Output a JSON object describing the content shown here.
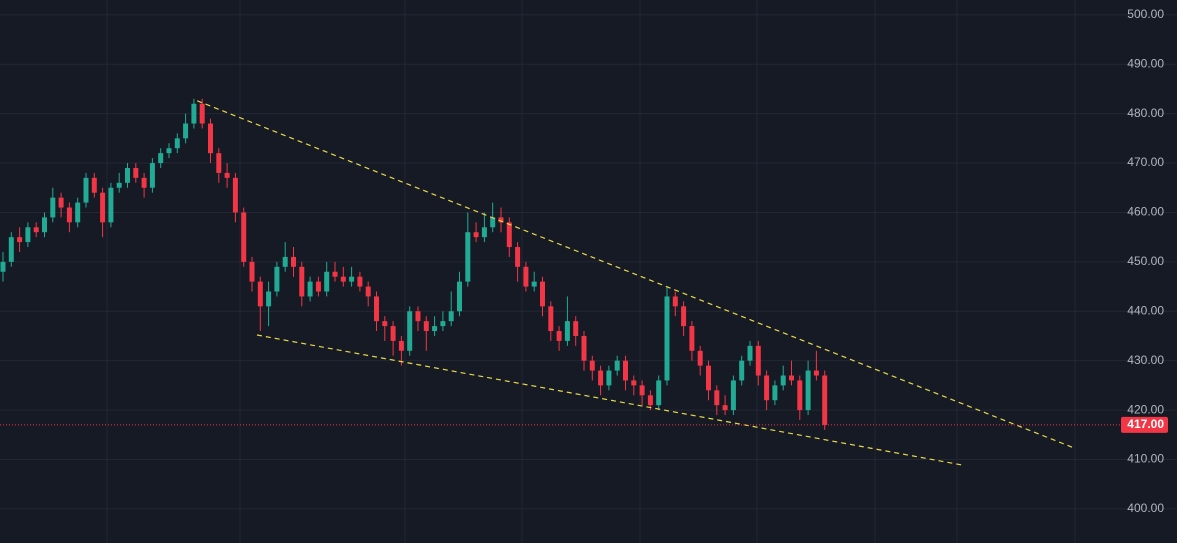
{
  "chart_data": {
    "type": "candlestick",
    "candles": [
      [
        448,
        452,
        446,
        450
      ],
      [
        450,
        456,
        449,
        455
      ],
      [
        455,
        457,
        452,
        454
      ],
      [
        454,
        458,
        453,
        457
      ],
      [
        457,
        458,
        455,
        456
      ],
      [
        456,
        460,
        455,
        459
      ],
      [
        459,
        465,
        458,
        463
      ],
      [
        463,
        464,
        459,
        461
      ],
      [
        461,
        462,
        456,
        458
      ],
      [
        458,
        463,
        457,
        462
      ],
      [
        462,
        468,
        461,
        467
      ],
      [
        467,
        468,
        463,
        464
      ],
      [
        464,
        465,
        455,
        458
      ],
      [
        458,
        466,
        457,
        465
      ],
      [
        465,
        468,
        464,
        466
      ],
      [
        466,
        470,
        465,
        469
      ],
      [
        469,
        470,
        466,
        467
      ],
      [
        467,
        468,
        463,
        465
      ],
      [
        465,
        471,
        464,
        470
      ],
      [
        470,
        473,
        469,
        472
      ],
      [
        472,
        474,
        471,
        473
      ],
      [
        473,
        476,
        472,
        475
      ],
      [
        475,
        480,
        474,
        478
      ],
      [
        478,
        483,
        477,
        482
      ],
      [
        482,
        483,
        477,
        478
      ],
      [
        478,
        479,
        470,
        472
      ],
      [
        472,
        473,
        466,
        468
      ],
      [
        468,
        470,
        465,
        467
      ],
      [
        467,
        468,
        458,
        460
      ],
      [
        460,
        461,
        449,
        450
      ],
      [
        450,
        451,
        444,
        446
      ],
      [
        446,
        447,
        436,
        441
      ],
      [
        441,
        446,
        437,
        444
      ],
      [
        444,
        450,
        443,
        449
      ],
      [
        449,
        454,
        448,
        451
      ],
      [
        451,
        453,
        447,
        449
      ],
      [
        449,
        450,
        441,
        443
      ],
      [
        443,
        447,
        442,
        446
      ],
      [
        446,
        447,
        443,
        444
      ],
      [
        444,
        450,
        443,
        448
      ],
      [
        448,
        450,
        446,
        447
      ],
      [
        447,
        449,
        445,
        446
      ],
      [
        446,
        449,
        445,
        447
      ],
      [
        447,
        448,
        444,
        445
      ],
      [
        445,
        446,
        441,
        443
      ],
      [
        443,
        444,
        436,
        438
      ],
      [
        438,
        439,
        434,
        437
      ],
      [
        437,
        438,
        431,
        434
      ],
      [
        434,
        435,
        429,
        432
      ],
      [
        432,
        441,
        431,
        440
      ],
      [
        440,
        441,
        436,
        438
      ],
      [
        438,
        439,
        432,
        436
      ],
      [
        436,
        439,
        435,
        437
      ],
      [
        437,
        440,
        436,
        438
      ],
      [
        438,
        444,
        437,
        440
      ],
      [
        440,
        448,
        439,
        446
      ],
      [
        446,
        460,
        445,
        456
      ],
      [
        456,
        458,
        454,
        455
      ],
      [
        455,
        460,
        454,
        457
      ],
      [
        457,
        462,
        456,
        459
      ],
      [
        459,
        461,
        456,
        458
      ],
      [
        458,
        459,
        451,
        453
      ],
      [
        453,
        454,
        446,
        449
      ],
      [
        449,
        450,
        444,
        445
      ],
      [
        445,
        448,
        444,
        446
      ],
      [
        446,
        447,
        439,
        441
      ],
      [
        441,
        442,
        434,
        436
      ],
      [
        436,
        437,
        432,
        434
      ],
      [
        434,
        443,
        433,
        438
      ],
      [
        438,
        439,
        433,
        435
      ],
      [
        435,
        436,
        428,
        430
      ],
      [
        430,
        431,
        426,
        428
      ],
      [
        428,
        429,
        423,
        425
      ],
      [
        425,
        429,
        424,
        428
      ],
      [
        428,
        431,
        427,
        430
      ],
      [
        430,
        431,
        424,
        426
      ],
      [
        426,
        427,
        423,
        425
      ],
      [
        425,
        426,
        421,
        423
      ],
      [
        423,
        424,
        420,
        421
      ],
      [
        421,
        427,
        420,
        426
      ],
      [
        426,
        445,
        425,
        443
      ],
      [
        443,
        444,
        439,
        441
      ],
      [
        441,
        442,
        435,
        437
      ],
      [
        437,
        438,
        430,
        432
      ],
      [
        432,
        433,
        427,
        429
      ],
      [
        429,
        430,
        422,
        424
      ],
      [
        424,
        425,
        419,
        421
      ],
      [
        421,
        423,
        419,
        420
      ],
      [
        420,
        427,
        419,
        426
      ],
      [
        426,
        431,
        425,
        430
      ],
      [
        430,
        434,
        429,
        433
      ],
      [
        433,
        434,
        425,
        427
      ],
      [
        427,
        428,
        420,
        422
      ],
      [
        422,
        426,
        421,
        425
      ],
      [
        425,
        429,
        424,
        427
      ],
      [
        427,
        430,
        425,
        426
      ],
      [
        426,
        427,
        418,
        420
      ],
      [
        420,
        430,
        419,
        428
      ],
      [
        428,
        432,
        426,
        427
      ],
      [
        427,
        428,
        416,
        417
      ]
    ],
    "up_color": "#22ab94",
    "down_color": "#f23645",
    "ylim": [
      393.1,
      503.0
    ],
    "yticks": [
      {
        "value": 400,
        "label": "400.00"
      },
      {
        "value": 410,
        "label": "410.00"
      },
      {
        "value": 420,
        "label": "420.00"
      },
      {
        "value": 430,
        "label": "430.00"
      },
      {
        "value": 440,
        "label": "440.00"
      },
      {
        "value": 450,
        "label": "450.00"
      },
      {
        "value": 460,
        "label": "460.00"
      },
      {
        "value": 470,
        "label": "470.00"
      },
      {
        "value": 480,
        "label": "480.00"
      },
      {
        "value": 490,
        "label": "490.00"
      },
      {
        "value": 500,
        "label": "500.00"
      }
    ],
    "grid": true,
    "trendlines": [
      {
        "start": [
          23.4,
          482.6
        ],
        "end": [
          128.8,
          412.5
        ]
      },
      {
        "start": [
          30.6,
          435.2
        ],
        "end": [
          115.5,
          408.9
        ]
      }
    ],
    "trendline_color": "#e8d94a",
    "last_price": {
      "value": 417,
      "label": "417.00"
    }
  }
}
